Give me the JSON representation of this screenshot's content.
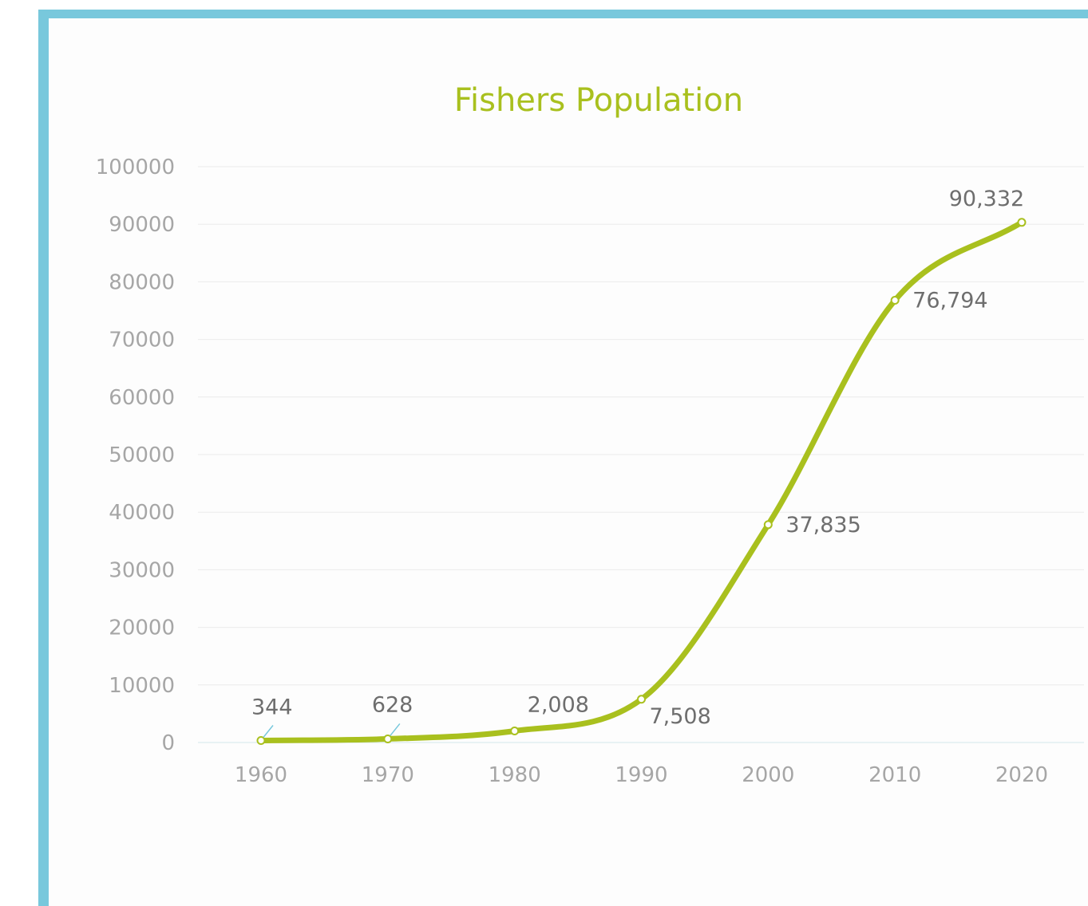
{
  "chart_data": {
    "type": "line",
    "title": "Fishers Population",
    "xlabel": "",
    "ylabel": "",
    "categories": [
      "1960",
      "1970",
      "1980",
      "1990",
      "2000",
      "2010",
      "2020"
    ],
    "series": [
      {
        "values": [
          344,
          628,
          2008,
          7508,
          37835,
          76794,
          90332
        ],
        "labels": [
          "344",
          "628",
          "2,008",
          "7,508",
          "37,835",
          "76,794",
          "90,332"
        ],
        "color": "#a9c01e"
      }
    ],
    "yticks": [
      "0",
      "10000",
      "20000",
      "30000",
      "40000",
      "50000",
      "60000",
      "70000",
      "80000",
      "90000",
      "100000"
    ],
    "ylim": [
      0,
      100000
    ],
    "grid": true,
    "legend": "none",
    "colors": {
      "frame": "#78c8dc",
      "line": "#a9c01e",
      "title": "#a9c01e",
      "tick": "#a6a6a6",
      "label": "#6e6e6e"
    }
  }
}
